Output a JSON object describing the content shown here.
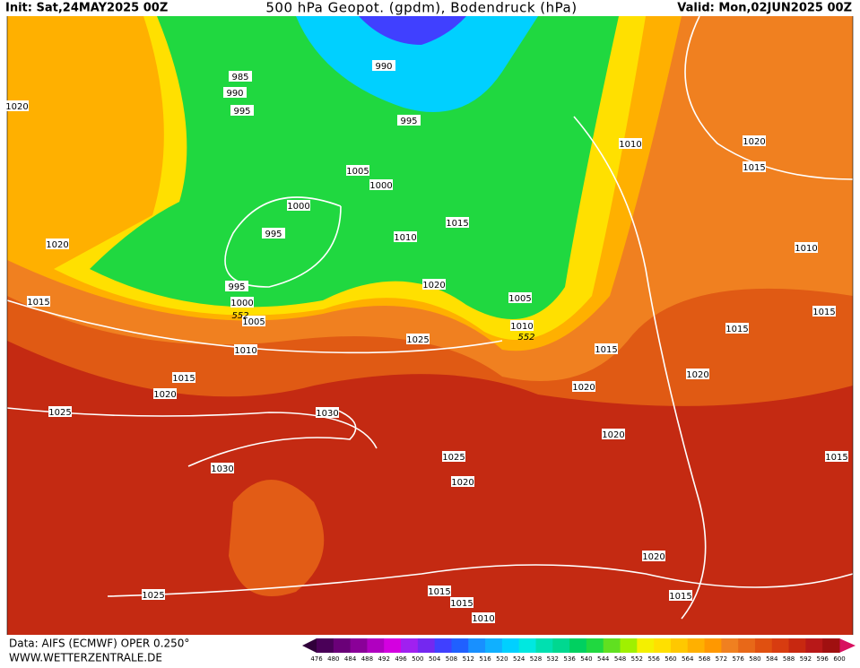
{
  "header": {
    "init": "Init: Sat,24MAY2025 00Z",
    "title": "500 hPa Geopot. (gpdm), Bodendruck (hPa)",
    "valid": "Valid: Mon,02JUN2025 00Z"
  },
  "map": {
    "isobar_labels": [
      "985",
      "990",
      "995",
      "990",
      "995",
      "1010",
      "1020",
      "1015",
      "1020",
      "1005",
      "1000",
      "1000",
      "995",
      "1015",
      "1010",
      "1020",
      "1010",
      "995",
      "1000",
      "1005",
      "1020",
      "1005",
      "1015",
      "1010",
      "1015",
      "1015",
      "1025",
      "1010",
      "1015",
      "1020",
      "1015",
      "1020",
      "1020",
      "1025",
      "1030",
      "1020",
      "1025",
      "1015",
      "1030",
      "1020",
      "1020",
      "1025",
      "1015",
      "1015",
      "1015",
      "1010"
    ],
    "contour_labels": [
      "552",
      "552"
    ]
  },
  "colorbar": {
    "ticks": [
      476,
      480,
      484,
      488,
      492,
      496,
      500,
      504,
      508,
      512,
      516,
      520,
      524,
      528,
      532,
      536,
      540,
      544,
      548,
      552,
      556,
      560,
      564,
      568,
      572,
      576,
      580,
      584,
      588,
      592,
      596,
      600
    ],
    "colors": [
      "#4a0058",
      "#6a0078",
      "#8a0098",
      "#b000c0",
      "#d400e0",
      "#a020f0",
      "#7428f0",
      "#4040ff",
      "#2060ff",
      "#1890ff",
      "#10b0ff",
      "#00d0ff",
      "#00e8e0",
      "#00e0b0",
      "#00d890",
      "#00d060",
      "#20d840",
      "#60e020",
      "#a0f000",
      "#f4f000",
      "#ffe000",
      "#ffc800",
      "#ffb000",
      "#ff9800",
      "#f08020",
      "#e86818",
      "#e05010",
      "#d83c10",
      "#c82810",
      "#b81818",
      "#a01010"
    ]
  },
  "footer": {
    "source": "Data: AIFS (ECMWF) OPER 0.250°",
    "site": "WWW.WETTERZENTRALE.DE"
  }
}
